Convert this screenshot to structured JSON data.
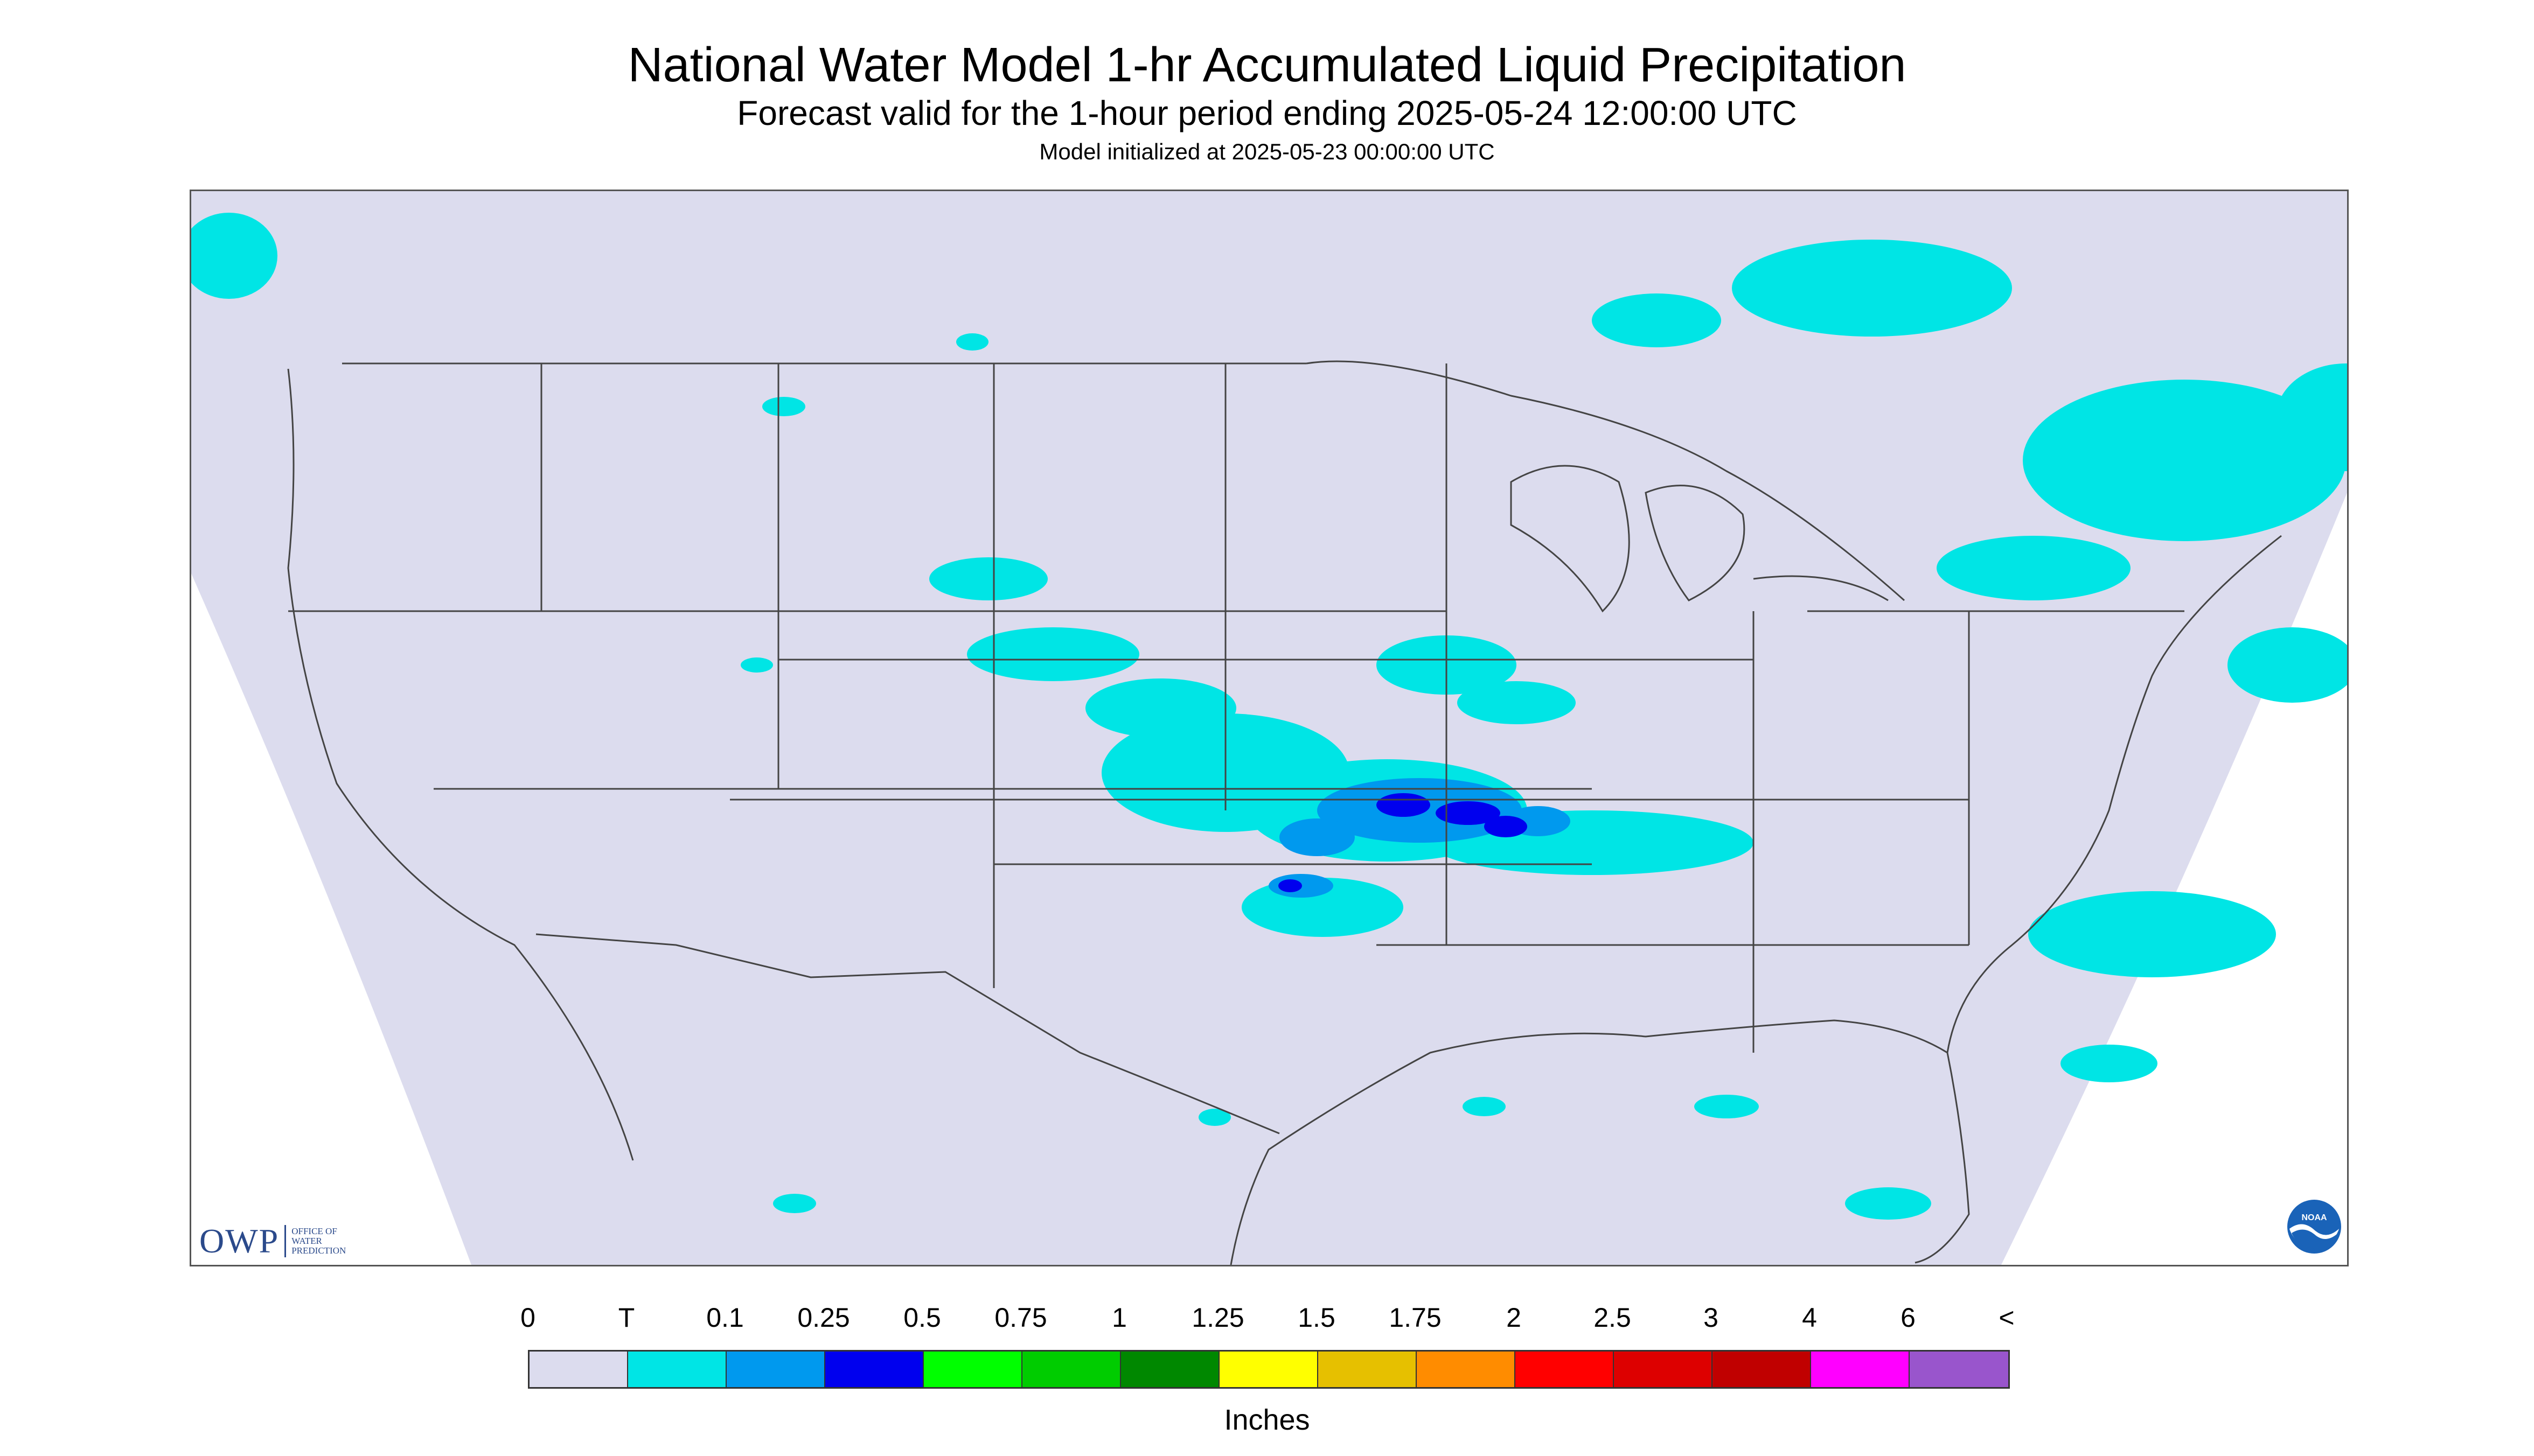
{
  "header": {
    "title": "National Water Model 1-hr Accumulated Liquid Precipitation",
    "subtitle": "Forecast valid for the 1-hour period ending 2025-05-24 12:00:00 UTC",
    "init": "Model initialized at 2025-05-23 00:00:00 UTC"
  },
  "colors": {
    "background": "#dcdcee",
    "map_land": "#dcdcee",
    "outside_domain": "#ffffff",
    "border_lines": "#444444",
    "precip_light": "#00e5e5",
    "precip_medium": "#0099ee",
    "precip_heavy": "#0000ee"
  },
  "logos": {
    "owp": {
      "letters": "OWP",
      "words": [
        "OFFICE OF",
        "WATER",
        "PREDICTION"
      ],
      "icon": "owp-logo"
    },
    "noaa": {
      "text": "NOAA",
      "icon": "noaa-logo"
    }
  },
  "legend": {
    "labels": [
      "0",
      "T",
      "0.1",
      "0.25",
      "0.5",
      "0.75",
      "1",
      "1.25",
      "1.5",
      "1.75",
      "2",
      "2.5",
      "3",
      "4",
      "6",
      "<"
    ],
    "colors": [
      "#dcdcee",
      "#00e5e5",
      "#0099ee",
      "#0000ee",
      "#00ff00",
      "#00cc00",
      "#008800",
      "#ffff00",
      "#e6c000",
      "#ff8c00",
      "#ff0000",
      "#dd0000",
      "#c00000",
      "#ff00ff",
      "#9955cc"
    ],
    "units": "Inches"
  }
}
